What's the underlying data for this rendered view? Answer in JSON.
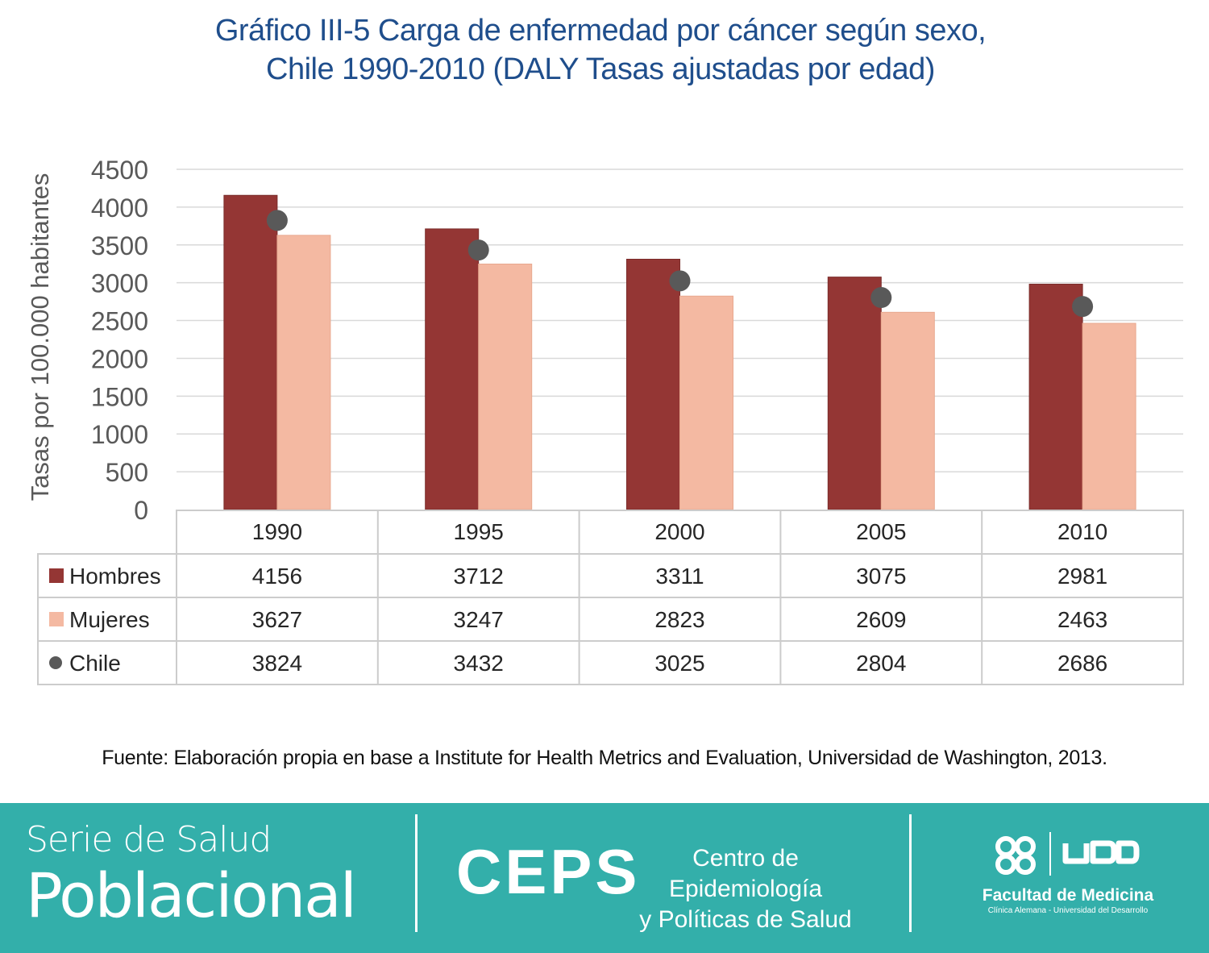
{
  "title": {
    "line1": "Gráfico III-5 Carga de enfermedad por cáncer según sexo,",
    "line2": "Chile 1990-2010 (DALY Tasas ajustadas por edad)"
  },
  "source": "Fuente: Elaboración propia en base a Institute for Health Metrics and Evaluation, Universidad de Washington, 2013.",
  "footer": {
    "serie_line1": "Serie de Salud",
    "serie_line2": "Poblacional",
    "ceps": "CEPS",
    "ceps_sub_line1": "Centro de Epidemiología",
    "ceps_sub_line2": "y Políticas de Salud",
    "udd_logo_text": "UDD",
    "udd_faculty": "Facultad de Medicina",
    "udd_sub": "Clínica Alemana - Universidad del Desarrollo"
  },
  "colors": {
    "hombres": "#943634",
    "mujeres": "#f4b9a2",
    "chile": "#595959",
    "title": "#1f4e8c",
    "footer_bg": "#33afaa"
  },
  "chart_data": {
    "type": "bar",
    "title": "Gráfico III-5 Carga de enfermedad por cáncer según sexo, Chile 1990-2010 (DALY Tasas ajustadas por edad)",
    "ylabel": "Tasas por 100.000 habitantes",
    "ylim": [
      0,
      4500
    ],
    "yticks": [
      0,
      500,
      1000,
      1500,
      2000,
      2500,
      3000,
      3500,
      4000,
      4500
    ],
    "grid": true,
    "data_table": true,
    "categories": [
      "1990",
      "1995",
      "2000",
      "2005",
      "2010"
    ],
    "series": [
      {
        "name": "Hombres",
        "type": "bar",
        "values": [
          4156,
          3712,
          3311,
          3075,
          2981
        ]
      },
      {
        "name": "Mujeres",
        "type": "bar",
        "values": [
          3627,
          3247,
          2823,
          2609,
          2463
        ]
      },
      {
        "name": "Chile",
        "type": "marker",
        "values": [
          3824,
          3432,
          3025,
          2804,
          2686
        ]
      }
    ]
  }
}
